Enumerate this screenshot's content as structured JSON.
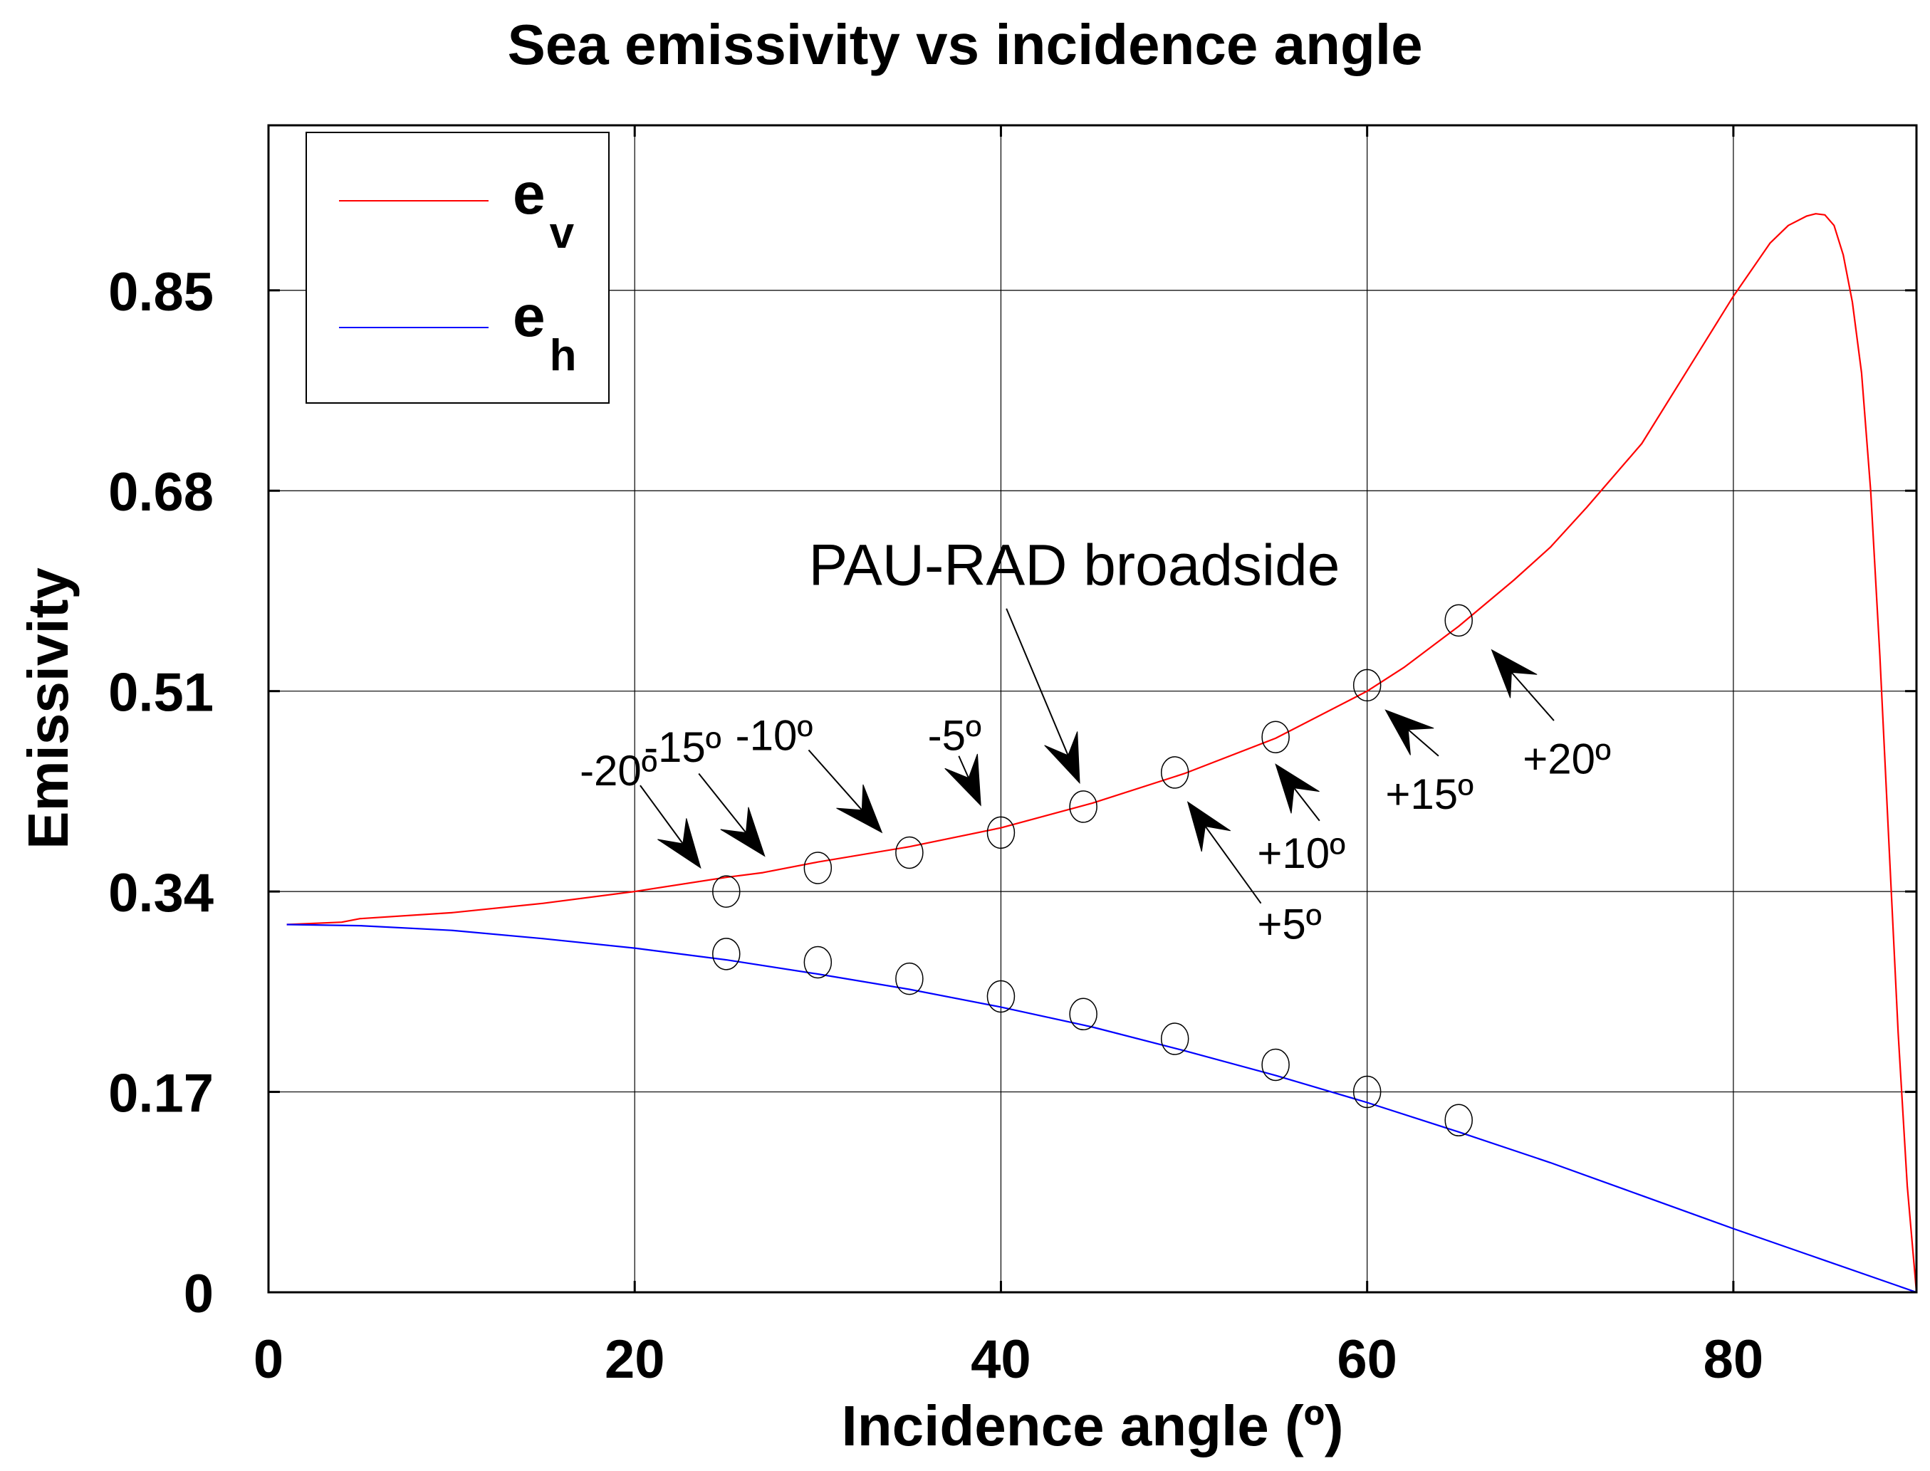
{
  "chart_data": {
    "type": "line",
    "title": "Sea emissivity vs incidence angle",
    "xlabel": "Incidence angle (º)",
    "ylabel": "Emissivity",
    "xlim": [
      0,
      90
    ],
    "ylim": [
      0,
      0.99
    ],
    "xticks": [
      0,
      20,
      40,
      60,
      80
    ],
    "xtick_labels": [
      "0",
      "20",
      "40",
      "60",
      "80"
    ],
    "yticks": [
      0,
      0.17,
      0.34,
      0.51,
      0.68,
      0.85
    ],
    "ytick_labels": [
      "0",
      "0.17",
      "0.34",
      "0.51",
      "0.68",
      "0.85"
    ],
    "grid": true,
    "legend_position": "top-left",
    "series": [
      {
        "name": "e_v",
        "legend_main": "e",
        "legend_sub": "v",
        "color": "#ff0000",
        "x": [
          1,
          4,
          5,
          10,
          15,
          20,
          25,
          27,
          30,
          35,
          40,
          45,
          50,
          55,
          60,
          62,
          65,
          68,
          70,
          72,
          75,
          78,
          80,
          82,
          83,
          84,
          84.5,
          85,
          85.5,
          86,
          86.5,
          87,
          87.5,
          88,
          88.5,
          89,
          89.5,
          90
        ],
        "values": [
          0.312,
          0.314,
          0.317,
          0.322,
          0.33,
          0.34,
          0.352,
          0.356,
          0.365,
          0.378,
          0.394,
          0.415,
          0.44,
          0.47,
          0.51,
          0.53,
          0.565,
          0.604,
          0.632,
          0.666,
          0.72,
          0.795,
          0.845,
          0.89,
          0.905,
          0.913,
          0.915,
          0.914,
          0.905,
          0.88,
          0.84,
          0.78,
          0.68,
          0.54,
          0.38,
          0.22,
          0.09,
          0.0
        ]
      },
      {
        "name": "e_h",
        "legend_main": "e",
        "legend_sub": "h",
        "color": "#0000ff",
        "x": [
          1,
          5,
          10,
          15,
          20,
          25,
          30,
          35,
          40,
          45,
          50,
          55,
          60,
          65,
          70,
          75,
          80,
          85,
          90
        ],
        "values": [
          0.312,
          0.311,
          0.307,
          0.3,
          0.292,
          0.282,
          0.27,
          0.257,
          0.242,
          0.225,
          0.205,
          0.184,
          0.161,
          0.136,
          0.11,
          0.082,
          0.054,
          0.027,
          0.0
        ]
      }
    ],
    "markers": {
      "ev": [
        [
          25,
          0.34
        ],
        [
          30,
          0.36
        ],
        [
          35,
          0.373
        ],
        [
          40,
          0.39
        ],
        [
          44.5,
          0.412
        ],
        [
          49.5,
          0.441
        ],
        [
          55,
          0.471
        ],
        [
          60,
          0.515
        ],
        [
          65,
          0.57
        ]
      ],
      "eh": [
        [
          25,
          0.287
        ],
        [
          30,
          0.28
        ],
        [
          35,
          0.266
        ],
        [
          40,
          0.251
        ],
        [
          44.5,
          0.236
        ],
        [
          49.5,
          0.215
        ],
        [
          55,
          0.193
        ],
        [
          60,
          0.17
        ],
        [
          65,
          0.146
        ]
      ]
    },
    "annotations": [
      {
        "text": "-20º",
        "x": 17,
        "y": 0.43
      },
      {
        "text": "-15º",
        "x": 20.5,
        "y": 0.45
      },
      {
        "text": "-10º",
        "x": 25.5,
        "y": 0.46
      },
      {
        "text": "-5º",
        "x": 36,
        "y": 0.46
      },
      {
        "text": "+5º",
        "x": 54,
        "y": 0.3
      },
      {
        "text": "+10º",
        "x": 54,
        "y": 0.36
      },
      {
        "text": "+15º",
        "x": 61,
        "y": 0.41
      },
      {
        "text": "+20º",
        "x": 68.5,
        "y": 0.44
      },
      {
        "text": "PAU-RAD broadside",
        "x": 29.5,
        "y": 0.6
      }
    ]
  }
}
